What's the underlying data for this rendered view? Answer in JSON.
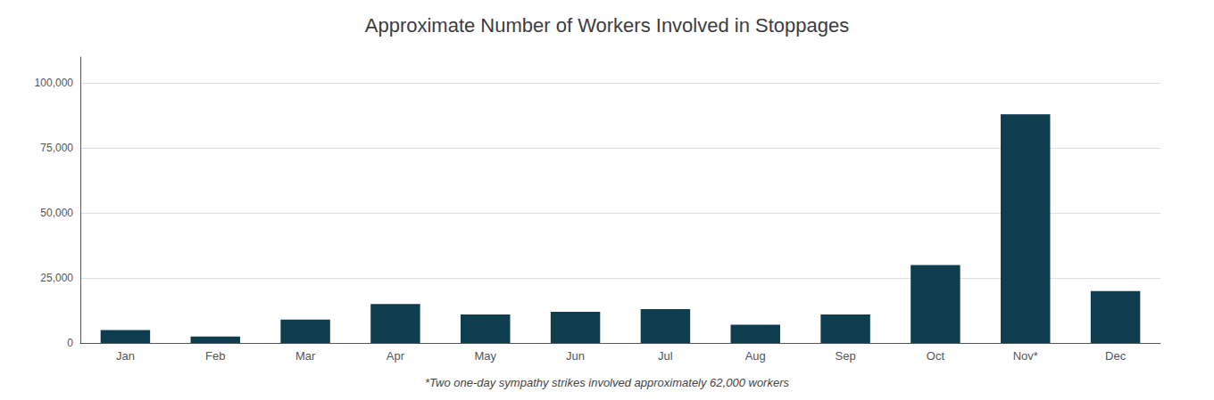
{
  "chart_data": {
    "type": "bar",
    "title": "Approximate Number of Workers Involved in Stoppages",
    "categories": [
      "Jan",
      "Feb",
      "Mar",
      "Apr",
      "May",
      "Jun",
      "Jul",
      "Aug",
      "Sep",
      "Oct",
      "Nov*",
      "Dec"
    ],
    "values": [
      5000,
      2500,
      9000,
      15000,
      11000,
      12000,
      13000,
      7000,
      11000,
      30000,
      88000,
      20000
    ],
    "color": "#0d3d4f",
    "ylim": [
      0,
      110000
    ],
    "yticks": [
      0,
      {
        "value": 25000,
        "label": "25,000"
      },
      {
        "value": 50000,
        "label": "50,000"
      },
      {
        "value": 75000,
        "label": "75,000"
      },
      {
        "value": 100000,
        "label": "100,000"
      }
    ],
    "grid": true,
    "annotations": [
      "*Two one-day sympathy strikes involved approximately 62,000 workers"
    ]
  }
}
